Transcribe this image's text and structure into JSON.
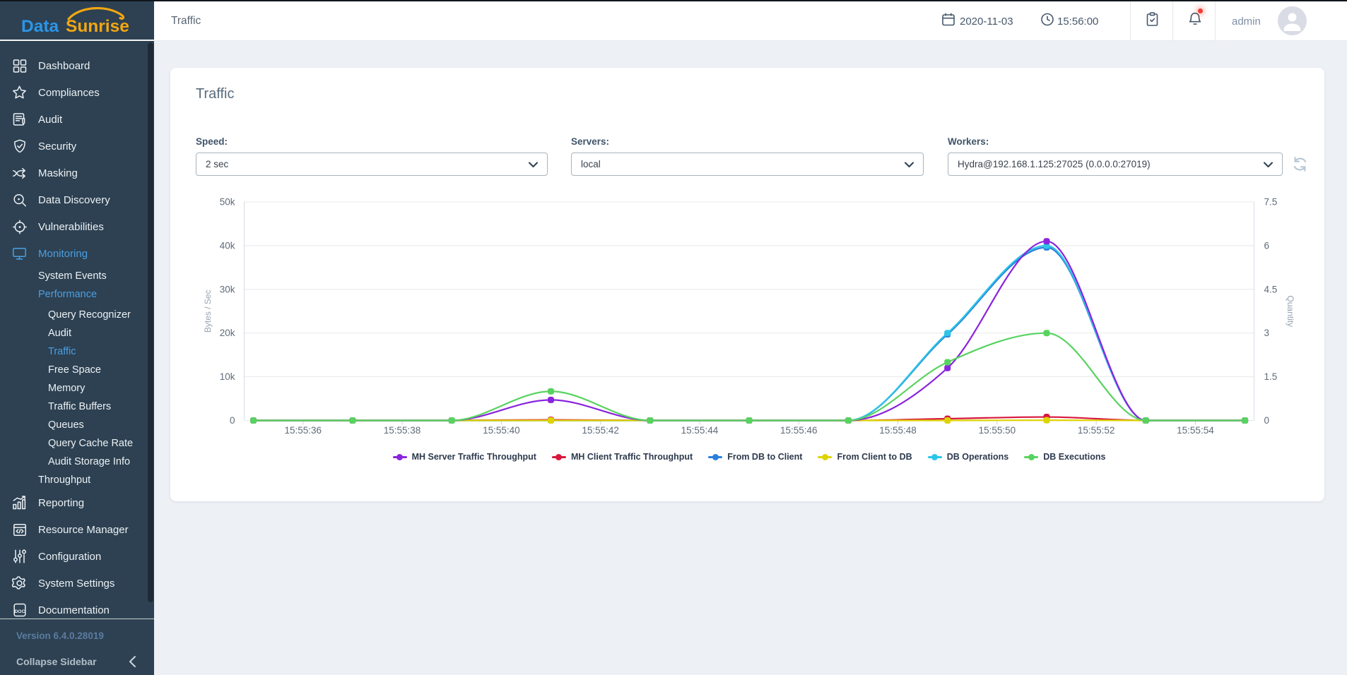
{
  "brand": {
    "word1": "Data",
    "word2": "Sunrise",
    "word1_color": "#2b96e8",
    "word2_color": "#f3a712"
  },
  "sidebar": {
    "bg_color": "#2d4152",
    "active_color": "#4a9fe3",
    "items": [
      {
        "id": "dashboard",
        "label": "Dashboard",
        "icon": "dashboard-icon",
        "level": 1,
        "active": false
      },
      {
        "id": "compliances",
        "label": "Compliances",
        "icon": "star-icon",
        "level": 1,
        "active": false
      },
      {
        "id": "audit",
        "label": "Audit",
        "icon": "audit-doc-icon",
        "level": 1,
        "active": false
      },
      {
        "id": "security",
        "label": "Security",
        "icon": "shield-icon",
        "level": 1,
        "active": false
      },
      {
        "id": "masking",
        "label": "Masking",
        "icon": "masking-icon",
        "level": 1,
        "active": false
      },
      {
        "id": "data-discovery",
        "label": "Data Discovery",
        "icon": "search-icon",
        "level": 1,
        "active": false
      },
      {
        "id": "vulnerabilities",
        "label": "Vulnerabilities",
        "icon": "target-icon",
        "level": 1,
        "active": false
      },
      {
        "id": "monitoring",
        "label": "Monitoring",
        "icon": "monitor-icon",
        "level": 1,
        "active": true
      },
      {
        "id": "system-events",
        "label": "System Events",
        "icon": null,
        "level": 2,
        "active": false
      },
      {
        "id": "performance",
        "label": "Performance",
        "icon": null,
        "level": 2,
        "active": true
      },
      {
        "id": "query-recognizer",
        "label": "Query Recognizer",
        "icon": null,
        "level": 3,
        "active": false
      },
      {
        "id": "audit-performance",
        "label": "Audit",
        "icon": null,
        "level": 3,
        "active": false
      },
      {
        "id": "traffic",
        "label": "Traffic",
        "icon": null,
        "level": 3,
        "active": true
      },
      {
        "id": "free-space",
        "label": "Free Space",
        "icon": null,
        "level": 3,
        "active": false
      },
      {
        "id": "memory",
        "label": "Memory",
        "icon": null,
        "level": 3,
        "active": false
      },
      {
        "id": "traffic-buffers",
        "label": "Traffic Buffers",
        "icon": null,
        "level": 3,
        "active": false
      },
      {
        "id": "queues",
        "label": "Queues",
        "icon": null,
        "level": 3,
        "active": false
      },
      {
        "id": "query-cache-rate",
        "label": "Query Cache Rate",
        "icon": null,
        "level": 3,
        "active": false
      },
      {
        "id": "audit-storage-info",
        "label": "Audit Storage Info",
        "icon": null,
        "level": 3,
        "active": false
      },
      {
        "id": "throughput",
        "label": "Throughput",
        "icon": null,
        "level": 2,
        "active": false
      },
      {
        "id": "reporting",
        "label": "Reporting",
        "icon": "barchart-icon",
        "level": 1,
        "active": false
      },
      {
        "id": "resource-manager",
        "label": "Resource Manager",
        "icon": "code-box-icon",
        "level": 1,
        "active": false
      },
      {
        "id": "configuration",
        "label": "Configuration",
        "icon": "sliders-icon",
        "level": 1,
        "active": false
      },
      {
        "id": "system-settings",
        "label": "System Settings",
        "icon": "gear-icon",
        "level": 1,
        "active": false
      },
      {
        "id": "documentation",
        "label": "Documentation",
        "icon": "doc-icon",
        "level": 1,
        "active": false
      }
    ],
    "version": "Version 6.4.0.28019",
    "collapse_label": "Collapse Sidebar"
  },
  "header": {
    "title": "Traffic",
    "date": "2020-11-03",
    "time": "15:56:00",
    "username": "admin",
    "notification_color": "#ef3e36"
  },
  "panel": {
    "title": "Traffic",
    "filters": {
      "speed": {
        "label": "Speed:",
        "value": "2 sec"
      },
      "servers": {
        "label": "Servers:",
        "value": "local"
      },
      "workers": {
        "label": "Workers:",
        "value": "Hydra@192.168.1.125:27025 (0.0.0.0:27019)"
      }
    }
  },
  "chart_data": {
    "type": "line",
    "x_label_texts": [
      "15:55:36",
      "15:55:38",
      "15:55:40",
      "15:55:42",
      "15:55:44",
      "15:55:46",
      "15:55:48",
      "15:55:50",
      "15:55:52",
      "15:55:54"
    ],
    "x_label_seconds": [
      36,
      38,
      40,
      42,
      44,
      46,
      48,
      50,
      52,
      54
    ],
    "point_seconds": [
      35,
      37,
      39,
      41,
      43,
      45,
      47,
      49,
      51,
      53,
      55
    ],
    "left_axis": {
      "title": "Bytes / Sec",
      "tick_labels": [
        "0",
        "10k",
        "20k",
        "30k",
        "40k",
        "50k"
      ],
      "tick_values": [
        0,
        10000,
        20000,
        30000,
        40000,
        50000
      ],
      "min": 0,
      "max": 50000
    },
    "right_axis": {
      "title": "Quantity",
      "tick_labels": [
        "0",
        "1.5",
        "3",
        "4.5",
        "6",
        "7.5"
      ],
      "tick_values": [
        0,
        1.5,
        3,
        4.5,
        6,
        7.5
      ],
      "min": 0,
      "max": 7.5
    },
    "grid": true,
    "legend_position": "bottom",
    "series": [
      {
        "name": "MH Server Traffic Throughput",
        "color": "#8a24dd",
        "axis": "left",
        "values": [
          0,
          0,
          0,
          4700,
          0,
          0,
          0,
          12000,
          41000,
          0,
          0
        ],
        "z": 5
      },
      {
        "name": "MH Client Traffic Throughput",
        "color": "#d8173c",
        "axis": "left",
        "values": [
          0,
          0,
          0,
          150,
          0,
          0,
          0,
          400,
          800,
          0,
          0
        ],
        "z": 3
      },
      {
        "name": "From DB to Client",
        "color": "#2a7fdb",
        "axis": "left",
        "values": [
          0,
          0,
          0,
          0,
          0,
          0,
          0,
          19700,
          39600,
          0,
          0
        ],
        "z": 1
      },
      {
        "name": "From Client to DB",
        "color": "#ddd404",
        "axis": "left",
        "values": [
          0,
          0,
          0,
          0,
          0,
          0,
          0,
          0,
          60,
          0,
          0
        ],
        "z": 4
      },
      {
        "name": "DB Operations",
        "color": "#2cc5e8",
        "axis": "right",
        "values": [
          0,
          0,
          0,
          0,
          0,
          0,
          0,
          3,
          6,
          0,
          0
        ],
        "z": 2
      },
      {
        "name": "DB Executions",
        "color": "#57d35f",
        "axis": "right",
        "values": [
          0,
          0,
          0,
          1,
          0,
          0,
          0,
          2,
          3,
          0,
          0
        ],
        "z": 6
      }
    ]
  }
}
